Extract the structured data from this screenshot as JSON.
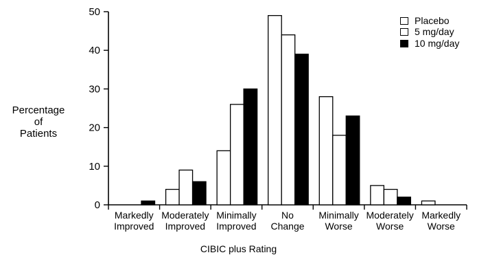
{
  "chart_data": {
    "type": "bar",
    "categories": [
      [
        "Markedly",
        "Improved"
      ],
      [
        "Moderately",
        "Improved"
      ],
      [
        "Minimally",
        "Improved"
      ],
      [
        "No",
        "Change"
      ],
      [
        "Minimally",
        "Worse"
      ],
      [
        "Moderately",
        "Worse"
      ],
      [
        "Markedly",
        "Worse"
      ]
    ],
    "series": [
      {
        "name": "Placebo",
        "fill": "#ffffff",
        "values": [
          0,
          4,
          14,
          49,
          28,
          5,
          1
        ]
      },
      {
        "name": "5 mg/day",
        "fill": "#ffffff",
        "values": [
          0,
          9,
          26,
          44,
          18,
          4,
          0
        ]
      },
      {
        "name": "10 mg/day",
        "fill": "#000000",
        "values": [
          1,
          6,
          30,
          39,
          23,
          2,
          0
        ]
      }
    ],
    "ylabel": [
      "Percentage",
      "of",
      "Patients"
    ],
    "xlabel": "CIBIC plus Rating",
    "ylim": [
      0,
      50
    ],
    "yticks": [
      0,
      10,
      20,
      30,
      40,
      50
    ],
    "legend_position": "top-right",
    "grid": false
  }
}
